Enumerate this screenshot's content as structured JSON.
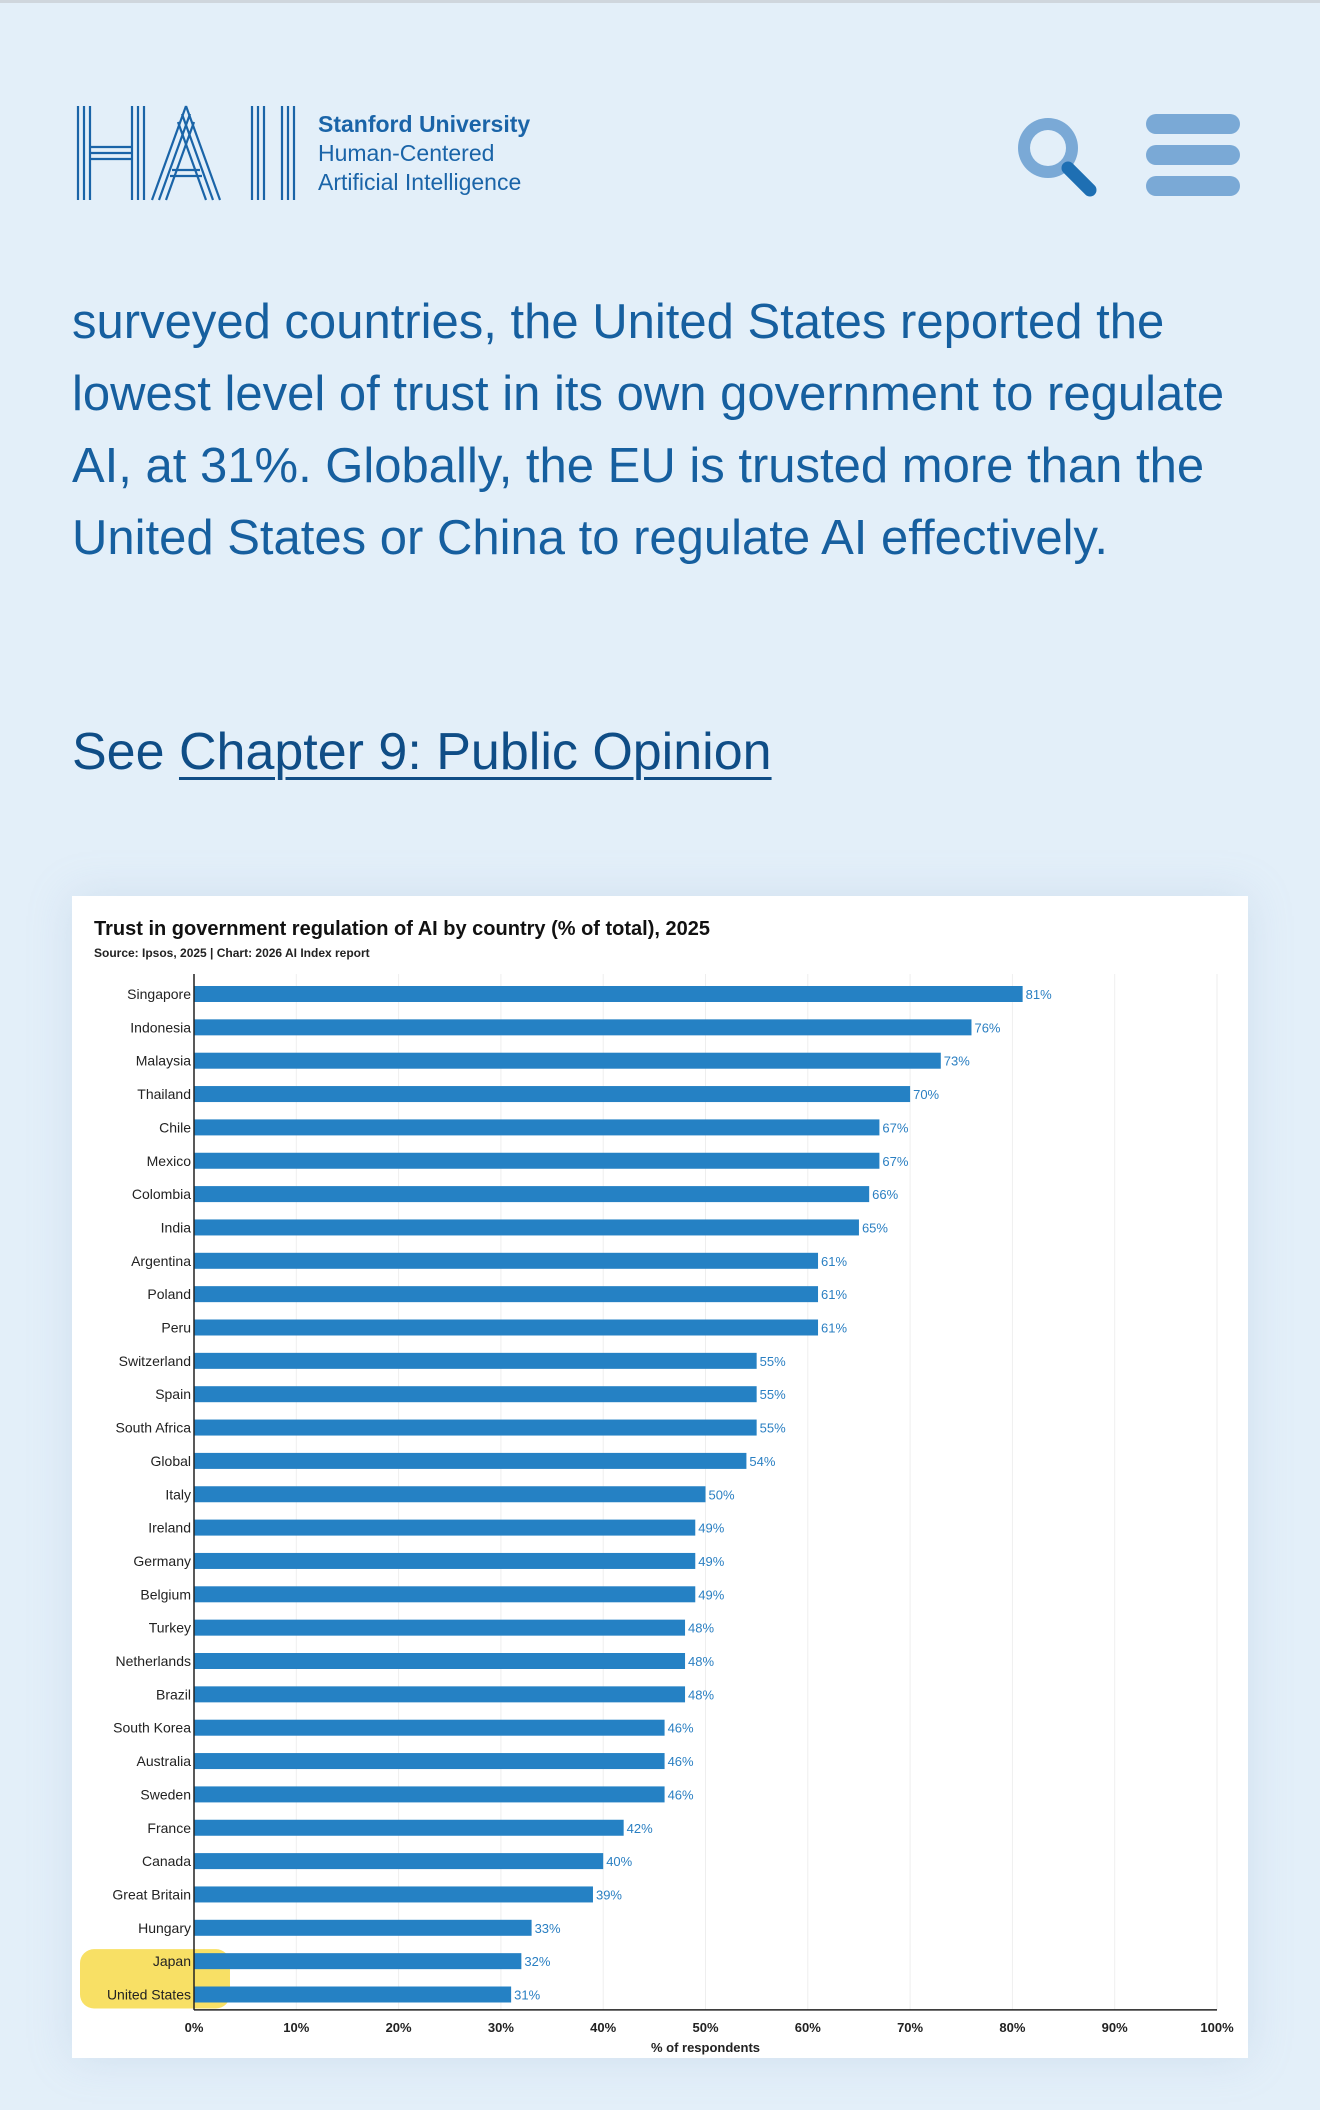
{
  "header": {
    "logo_letters": "HAI",
    "org_line1": "Stanford University",
    "org_line2": "Human-Centered",
    "org_line3": "Artificial Intelligence",
    "search_icon": "search-icon",
    "menu_icon": "hamburger-menu-icon"
  },
  "article": {
    "paragraph": "surveyed countries, the United States reported the lowest level of trust in its own government to regulate AI, at 31%. Globally, the EU is trusted more than the United States or China to regulate AI effectively.",
    "see_prefix": "See ",
    "see_link": "Chapter 9: Public Opinion"
  },
  "colors": {
    "accent": "#1a64a8",
    "bar": "#2581c4",
    "background": "#e3eff9",
    "highlight": "#f5d531"
  },
  "chart_data": {
    "type": "bar",
    "orientation": "horizontal",
    "title": "Trust in government regulation of AI by country (% of total), 2025",
    "subtitle": "Source: Ipsos, 2025 | Chart: 2026 AI Index report",
    "xlabel": "% of respondents",
    "xlim": [
      0,
      100
    ],
    "xticks": [
      "0%",
      "10%",
      "20%",
      "30%",
      "40%",
      "50%",
      "60%",
      "70%",
      "80%",
      "90%",
      "100%"
    ],
    "grid": true,
    "highlighted": [
      "Japan",
      "United States"
    ],
    "categories": [
      "Singapore",
      "Indonesia",
      "Malaysia",
      "Thailand",
      "Chile",
      "Mexico",
      "Colombia",
      "India",
      "Argentina",
      "Poland",
      "Peru",
      "Switzerland",
      "Spain",
      "South Africa",
      "Global",
      "Italy",
      "Ireland",
      "Germany",
      "Belgium",
      "Turkey",
      "Netherlands",
      "Brazil",
      "South Korea",
      "Australia",
      "Sweden",
      "France",
      "Canada",
      "Great Britain",
      "Hungary",
      "Japan",
      "United States"
    ],
    "values": [
      81,
      76,
      73,
      70,
      67,
      67,
      66,
      65,
      61,
      61,
      61,
      55,
      55,
      55,
      54,
      50,
      49,
      49,
      49,
      48,
      48,
      48,
      46,
      46,
      46,
      42,
      40,
      39,
      33,
      32,
      31
    ],
    "value_labels": [
      "81%",
      "76%",
      "73%",
      "70%",
      "67%",
      "67%",
      "66%",
      "65%",
      "61%",
      "61%",
      "61%",
      "55%",
      "55%",
      "55%",
      "54%",
      "50%",
      "49%",
      "49%",
      "49%",
      "48%",
      "48%",
      "48%",
      "46%",
      "46%",
      "46%",
      "42%",
      "40%",
      "39%",
      "33%",
      "32%",
      "31%"
    ]
  }
}
